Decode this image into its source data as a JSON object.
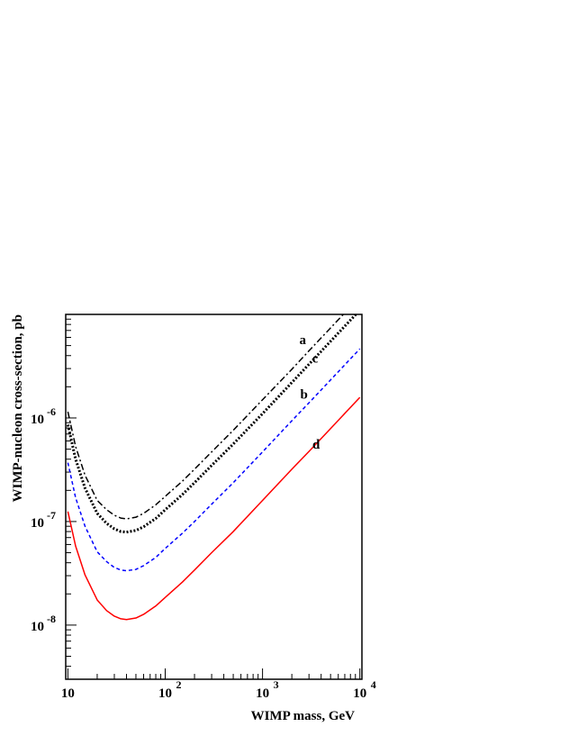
{
  "chart_data": {
    "type": "line",
    "title": "",
    "xlabel": "WIMP mass, GeV",
    "ylabel": "WIMP-nucleon cross-section, pb",
    "x_scale": "log",
    "y_scale": "log",
    "xlim": [
      9.5,
      10500
    ],
    "ylim": [
      3e-09,
      1e-05
    ],
    "x_ticks": [
      {
        "value": 10,
        "base": "10",
        "exp": ""
      },
      {
        "value": 100,
        "base": "10",
        "exp": "2"
      },
      {
        "value": 1000,
        "base": "10",
        "exp": "3"
      },
      {
        "value": 10000,
        "base": "10",
        "exp": "4"
      }
    ],
    "y_ticks": [
      {
        "value": 1e-08,
        "base": "10",
        "exp": "-8"
      },
      {
        "value": 1e-07,
        "base": "10",
        "exp": "-7"
      },
      {
        "value": 1e-06,
        "base": "10",
        "exp": "-6"
      }
    ],
    "grid": false,
    "legend": "none",
    "series": [
      {
        "name": "a",
        "color": "#000000",
        "style": "dashdot",
        "x": [
          10,
          12,
          15,
          20,
          25,
          30,
          35,
          40,
          50,
          60,
          80,
          100,
          150,
          200,
          300,
          500,
          1000,
          2000,
          3000,
          5000,
          10000
        ],
        "y": [
          1.15e-06,
          5.3e-07,
          2.8e-07,
          1.6e-07,
          1.3e-07,
          1.15e-07,
          1.08e-07,
          1.06e-07,
          1.1e-07,
          1.2e-07,
          1.45e-07,
          1.75e-07,
          2.45e-07,
          3.2e-07,
          4.7e-07,
          7.6e-07,
          1.5e-06,
          2.95e-06,
          4.45e-06,
          7.4e-06,
          1.48e-05
        ]
      },
      {
        "name": "c",
        "color": "#000000",
        "style": "dotted",
        "x": [
          10,
          12,
          15,
          20,
          25,
          30,
          35,
          40,
          50,
          60,
          80,
          100,
          150,
          200,
          300,
          500,
          1000,
          2000,
          3000,
          5000,
          10000
        ],
        "y": [
          8.6e-07,
          4e-07,
          2.1e-07,
          1.2e-07,
          9.6e-08,
          8.5e-08,
          8e-08,
          7.9e-08,
          8.2e-08,
          8.9e-08,
          1.07e-07,
          1.3e-07,
          1.82e-07,
          2.37e-07,
          3.48e-07,
          5.6e-07,
          1.1e-06,
          2.2e-06,
          3.3e-06,
          5.5e-06,
          1.1e-05
        ]
      },
      {
        "name": "b",
        "color": "#0000ff",
        "style": "dashed",
        "x": [
          10,
          12,
          15,
          20,
          25,
          30,
          35,
          40,
          50,
          60,
          80,
          100,
          150,
          200,
          300,
          500,
          1000,
          2000,
          3000,
          5000,
          10000
        ],
        "y": [
          3.7e-07,
          1.7e-07,
          9e-08,
          5.1e-08,
          4.1e-08,
          3.6e-08,
          3.4e-08,
          3.35e-08,
          3.45e-08,
          3.75e-08,
          4.5e-08,
          5.5e-08,
          7.7e-08,
          1e-07,
          1.47e-07,
          2.37e-07,
          4.7e-07,
          9.4e-07,
          1.4e-06,
          2.33e-06,
          4.65e-06
        ]
      },
      {
        "name": "d",
        "color": "#ff0000",
        "style": "solid",
        "x": [
          10,
          12,
          15,
          20,
          25,
          30,
          35,
          40,
          50,
          60,
          80,
          100,
          150,
          200,
          300,
          500,
          1000,
          2000,
          3000,
          5000,
          10000
        ],
        "y": [
          1.25e-07,
          5.8e-08,
          3.05e-08,
          1.75e-08,
          1.38e-08,
          1.22e-08,
          1.15e-08,
          1.13e-08,
          1.17e-08,
          1.27e-08,
          1.53e-08,
          1.85e-08,
          2.6e-08,
          3.4e-08,
          5e-08,
          8e-08,
          1.6e-07,
          3.2e-07,
          4.75e-07,
          7.9e-07,
          1.58e-06
        ]
      }
    ]
  }
}
